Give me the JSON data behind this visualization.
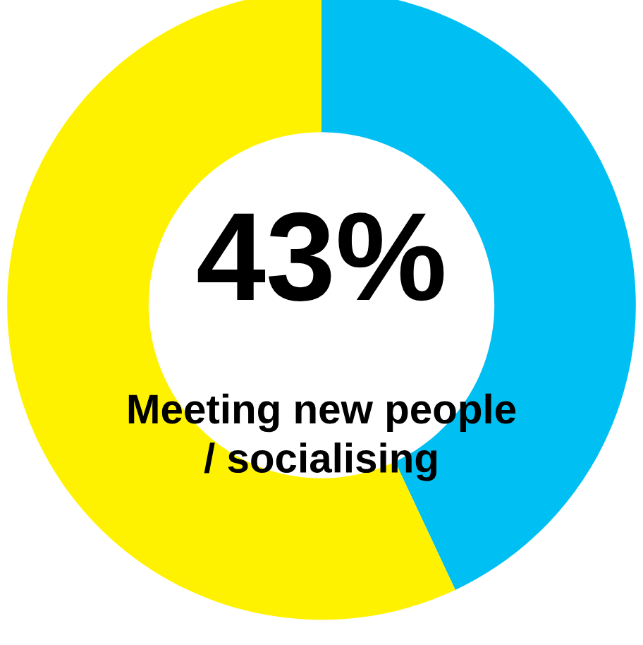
{
  "chart_data": {
    "type": "donut",
    "title": "Meeting new people\n/ socialising",
    "categories": [
      null,
      null
    ],
    "values": [
      43,
      57
    ],
    "colors": [
      "#00bff3",
      "#fff200"
    ],
    "value_labels": [
      "43%",
      null
    ]
  }
}
